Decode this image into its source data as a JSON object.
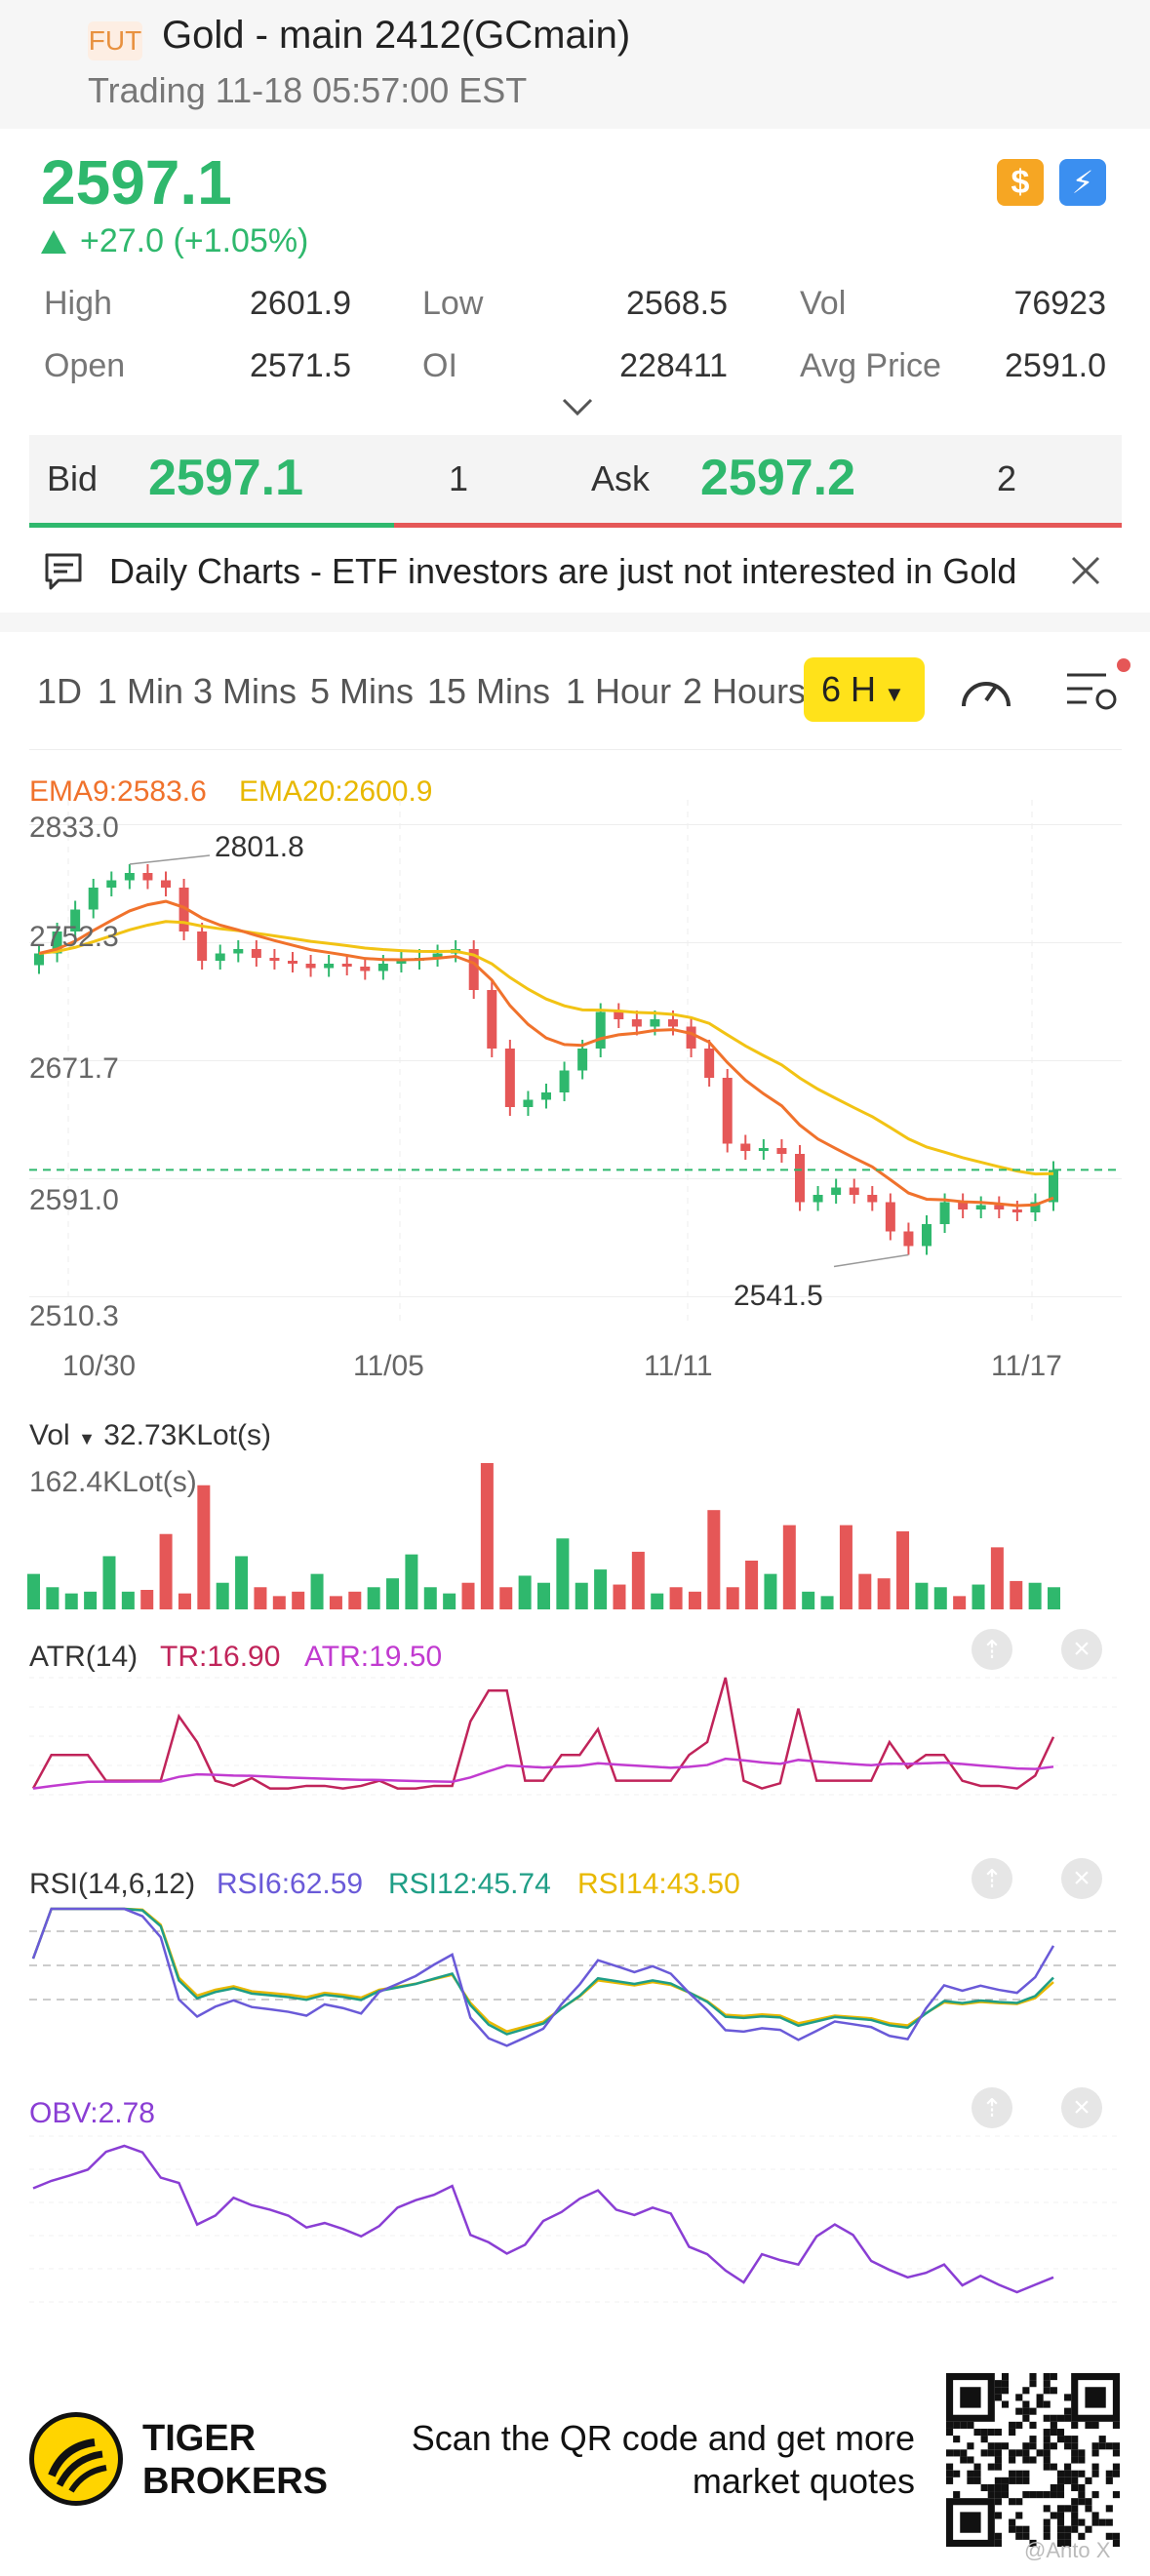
{
  "header": {
    "badge": "FUT",
    "title": "Gold - main 2412(GCmain)",
    "subtitle": "Trading 11-18 05:57:00 EST"
  },
  "quote": {
    "price": "2597.1",
    "change": "+27.0 (+1.05%)",
    "icons": [
      "dollar-icon",
      "flash-icon"
    ],
    "stats": [
      {
        "label": "High",
        "value": "2601.9"
      },
      {
        "label": "Low",
        "value": "2568.5"
      },
      {
        "label": "Vol",
        "value": "76923"
      },
      {
        "label": "Open",
        "value": "2571.5"
      },
      {
        "label": "OI",
        "value": "228411"
      },
      {
        "label": "Avg Price",
        "value": "2591.0"
      }
    ]
  },
  "orderbook": {
    "bid_label": "Bid",
    "bid_price": "2597.1",
    "bid_size": "1",
    "ask_label": "Ask",
    "ask_price": "2597.2",
    "ask_size": "2"
  },
  "news": {
    "text": "Daily Charts - ETF investors are just not interested in Gold"
  },
  "tabs": [
    "1D",
    "1 Min",
    "3 Mins",
    "5 Mins",
    "15 Mins",
    "1 Hour",
    "2 Hours"
  ],
  "active_tab": "6 H",
  "colors": {
    "up": "#2fb86d",
    "down": "#e55757",
    "ema9": "#f0722c",
    "ema20": "#f2c314",
    "accent": "#ffe21a"
  },
  "main_chart": {
    "ema9_label": "EMA9:2583.6",
    "ema20_label": "EMA20:2600.9",
    "y_labels": [
      "2833.0",
      "2752.3",
      "2671.7",
      "2591.0",
      "2510.3"
    ],
    "x_labels": [
      "10/30",
      "11/05",
      "11/11",
      "11/17"
    ],
    "high_label": "2801.8",
    "low_label": "2541.5"
  },
  "volume": {
    "label": "Vol",
    "value": "32.73KLot(s)",
    "max_label": "162.4KLot(s)"
  },
  "atr": {
    "name": "ATR(14)",
    "tr": "TR:16.90",
    "atr": "ATR:19.50"
  },
  "rsi": {
    "name": "RSI(14,6,12)",
    "rsi6": "RSI6:62.59",
    "rsi12": "RSI12:45.74",
    "rsi14": "RSI14:43.50"
  },
  "obv": {
    "label": "OBV:2.78"
  },
  "footer": {
    "brand_line1": "TIGER",
    "brand_line2": "BROKERS",
    "scan_line1": "Scan the QR code and get more",
    "scan_line2": "market quotes",
    "watermark": "@Anto X"
  },
  "chart_data": {
    "type": "candlestick",
    "ylim": [
      2510.3,
      2833.0
    ],
    "x_ticks": [
      "10/30",
      "11/05",
      "11/11",
      "11/17"
    ],
    "last": 2597.1,
    "candles_approx_close": [
      2745,
      2760,
      2775,
      2790,
      2795,
      2800,
      2795,
      2790,
      2760,
      2740,
      2745,
      2748,
      2742,
      2740,
      2738,
      2735,
      2738,
      2736,
      2733,
      2738,
      2740,
      2742,
      2745,
      2748,
      2720,
      2680,
      2640,
      2645,
      2650,
      2665,
      2680,
      2705,
      2700,
      2695,
      2700,
      2695,
      2680,
      2660,
      2615,
      2610,
      2612,
      2608,
      2575,
      2580,
      2585,
      2580,
      2575,
      2555,
      2545,
      2560,
      2575,
      2570,
      2573,
      2570,
      2568,
      2575,
      2597
    ],
    "volume_approx": [
      40,
      25,
      18,
      20,
      60,
      20,
      22,
      85,
      18,
      140,
      30,
      60,
      25,
      15,
      20,
      40,
      15,
      20,
      25,
      35,
      62,
      25,
      18,
      30,
      165,
      25,
      38,
      30,
      80,
      30,
      45,
      28,
      65,
      18,
      25,
      20,
      112,
      25,
      55,
      40,
      95,
      20,
      15,
      95,
      40,
      35,
      88,
      30,
      25,
      15,
      28,
      70,
      32,
      30,
      25
    ],
    "series": [
      {
        "name": "EMA9",
        "last": 2583.6
      },
      {
        "name": "EMA20",
        "last": 2600.9
      },
      {
        "name": "TR",
        "last": 16.9
      },
      {
        "name": "ATR",
        "last": 19.5
      },
      {
        "name": "RSI6",
        "last": 62.59
      },
      {
        "name": "RSI12",
        "last": 45.74
      },
      {
        "name": "RSI14",
        "last": 43.5
      },
      {
        "name": "OBV",
        "last": 2.78
      }
    ]
  }
}
